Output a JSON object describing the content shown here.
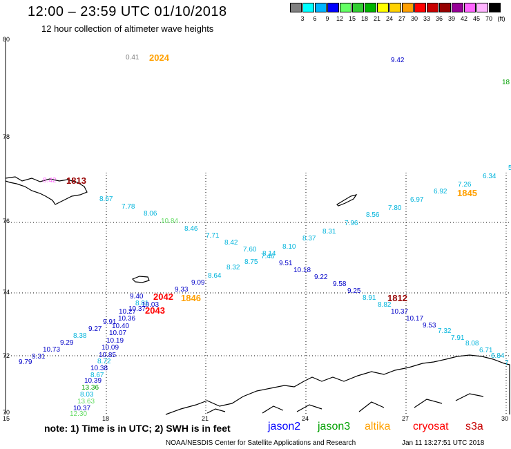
{
  "title": "12:00 – 23:59 UTC 01/10/2018",
  "subtitle": "12 hour collection of altimeter wave heights",
  "legend": {
    "unit": "(ft)",
    "colors": [
      "#808080",
      "#00ffff",
      "#00b4ff",
      "#0000ff",
      "#64ff64",
      "#32cd32",
      "#00b400",
      "#ffff00",
      "#ffd200",
      "#ffa000",
      "#ff0000",
      "#c80000",
      "#960000",
      "#960096",
      "#ff64ff",
      "#ffb4ff",
      "#000000"
    ],
    "labels": [
      "3",
      "6",
      "9",
      "12",
      "15",
      "18",
      "21",
      "24",
      "27",
      "30",
      "33",
      "36",
      "39",
      "42",
      "45",
      "70"
    ]
  },
  "axes": {
    "y_ticks": [
      "80",
      "78",
      "76",
      "74",
      "72",
      "70"
    ],
    "x_ticks": [
      "15",
      "18",
      "21",
      "24",
      "27",
      "30"
    ]
  },
  "observations": [
    {
      "text": "0.41",
      "c": "#808080"
    },
    {
      "text": "9.42",
      "c": "#0000c8"
    },
    {
      "text": "18",
      "c": "#00a000"
    },
    {
      "text": "5",
      "c": "#00b4dc"
    },
    {
      "text": "6.34",
      "c": "#00b4dc"
    },
    {
      "text": "7.26",
      "c": "#00b4dc"
    },
    {
      "text": "6.92",
      "c": "#00b4dc"
    },
    {
      "text": "6.97",
      "c": "#00b4dc"
    },
    {
      "text": "7.80",
      "c": "#00b4dc"
    },
    {
      "text": "8.56",
      "c": "#00b4dc"
    },
    {
      "text": "7.96",
      "c": "#00b4dc"
    },
    {
      "text": "8.31",
      "c": "#00b4dc"
    },
    {
      "text": "8.37",
      "c": "#00b4dc"
    },
    {
      "text": "8.10",
      "c": "#00b4dc"
    },
    {
      "text": "8.14",
      "c": "#00b4dc"
    },
    {
      "text": "7.60",
      "c": "#00b4dc"
    },
    {
      "text": "7.46",
      "c": "#00b4dc"
    },
    {
      "text": "8.42",
      "c": "#00b4dc"
    },
    {
      "text": "7.71",
      "c": "#00b4dc"
    },
    {
      "text": "8.46",
      "c": "#00b4dc"
    },
    {
      "text": "10.84",
      "c": "#64dc64"
    },
    {
      "text": "8.06",
      "c": "#00b4dc"
    },
    {
      "text": "7.78",
      "c": "#00b4dc"
    },
    {
      "text": "8.67",
      "c": "#00b4dc"
    },
    {
      "text": "8.42",
      "c": "#ff64ff"
    },
    {
      "text": "8.75",
      "c": "#00b4dc"
    },
    {
      "text": "8.32",
      "c": "#00b4dc"
    },
    {
      "text": "8.64",
      "c": "#00b4dc"
    },
    {
      "text": "9.09",
      "c": "#0000c8"
    },
    {
      "text": "9.33",
      "c": "#0000c8"
    },
    {
      "text": "9.51",
      "c": "#0000c8"
    },
    {
      "text": "10.18",
      "c": "#0000c8"
    },
    {
      "text": "9.22",
      "c": "#0000c8"
    },
    {
      "text": "9.58",
      "c": "#0000c8"
    },
    {
      "text": "9.25",
      "c": "#0000c8"
    },
    {
      "text": "8.91",
      "c": "#00b4dc"
    },
    {
      "text": "8.82",
      "c": "#00b4dc"
    },
    {
      "text": "10.37",
      "c": "#0000c8"
    },
    {
      "text": "10.17",
      "c": "#0000c8"
    },
    {
      "text": "9.53",
      "c": "#0000c8"
    },
    {
      "text": "7.32",
      "c": "#00b4dc"
    },
    {
      "text": "7.91",
      "c": "#00b4dc"
    },
    {
      "text": "8.08",
      "c": "#00b4dc"
    },
    {
      "text": "6.71",
      "c": "#00b4dc"
    },
    {
      "text": "6.84",
      "c": "#00b4dc"
    },
    {
      "text": "7",
      "c": "#00b4dc"
    },
    {
      "text": "9.40",
      "c": "#0000c8"
    },
    {
      "text": "8.81",
      "c": "#00b4dc"
    },
    {
      "text": "10.03",
      "c": "#0000c8"
    },
    {
      "text": "10.37",
      "c": "#0000c8"
    },
    {
      "text": "10.27",
      "c": "#0000c8"
    },
    {
      "text": "10.36",
      "c": "#0000c8"
    },
    {
      "text": "9.91",
      "c": "#0000c8"
    },
    {
      "text": "10.40",
      "c": "#0000c8"
    },
    {
      "text": "9.27",
      "c": "#0000c8"
    },
    {
      "text": "10.07",
      "c": "#0000c8"
    },
    {
      "text": "8.38",
      "c": "#00b4dc"
    },
    {
      "text": "10.19",
      "c": "#0000c8"
    },
    {
      "text": "9.29",
      "c": "#0000c8"
    },
    {
      "text": "10.09",
      "c": "#0000c8"
    },
    {
      "text": "10.73",
      "c": "#0000c8"
    },
    {
      "text": "10.85",
      "c": "#0000c8"
    },
    {
      "text": "9.31",
      "c": "#0000c8"
    },
    {
      "text": "8.72",
      "c": "#00b4dc"
    },
    {
      "text": "9.79",
      "c": "#0000c8"
    },
    {
      "text": "10.38",
      "c": "#0000c8"
    },
    {
      "text": "8.67",
      "c": "#00b4dc"
    },
    {
      "text": "10.39",
      "c": "#0000c8"
    },
    {
      "text": "13.36",
      "c": "#00a000"
    },
    {
      "text": "8.03",
      "c": "#00b4dc"
    },
    {
      "text": "13.63",
      "c": "#64dc64"
    },
    {
      "text": "10.37",
      "c": "#0000c8"
    },
    {
      "text": "12.30",
      "c": "#64dc64"
    }
  ],
  "pass_times": [
    {
      "text": "2024",
      "c": "#ffa000"
    },
    {
      "text": "1813",
      "c": "#960000"
    },
    {
      "text": "1845",
      "c": "#ffa000"
    },
    {
      "text": "2042",
      "c": "#ff0000"
    },
    {
      "text": "1846",
      "c": "#ffa000"
    },
    {
      "text": "2043",
      "c": "#ff0000"
    },
    {
      "text": "1812",
      "c": "#960000"
    }
  ],
  "note": "note:  1) Time is in UTC;  2) SWH is in feet",
  "satellites": [
    {
      "name": "jason2",
      "c": "#0000ff"
    },
    {
      "name": "jason3",
      "c": "#00a000"
    },
    {
      "name": "altika",
      "c": "#ffa000"
    },
    {
      "name": "cryosat",
      "c": "#ff0000"
    },
    {
      "name": "s3a",
      "c": "#c80000"
    }
  ],
  "footer": {
    "left": "NOAA/NESDIS Center for Satellite Applications and Research",
    "right": "Jan 11 13:27:51 UTC 2018"
  }
}
